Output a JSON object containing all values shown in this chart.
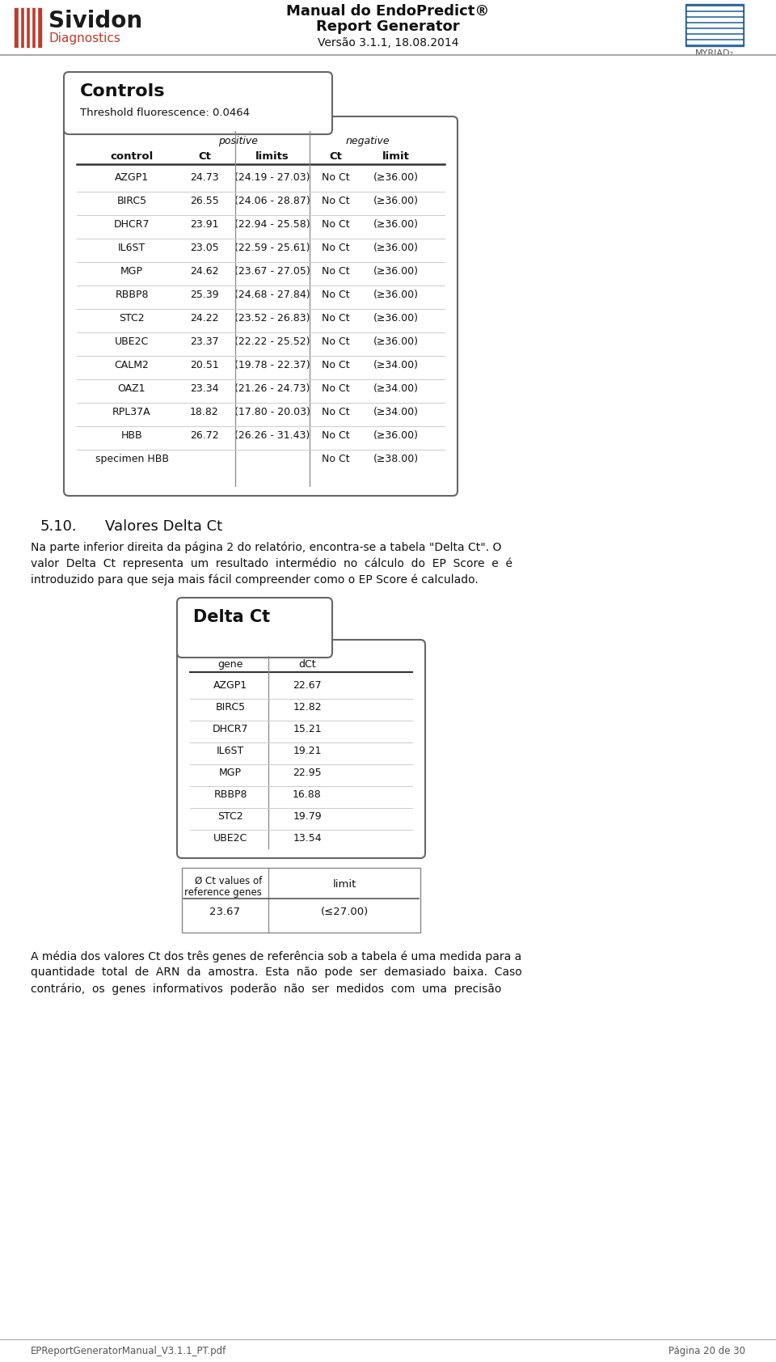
{
  "header_title1": "Manual do EndoPredict®",
  "header_title2": "Report Generator",
  "header_subtitle": "Versão 3.1.1, 18.08.2014",
  "sividon_text": "Sividon",
  "diagnostics_text": "Diagnostics",
  "section_title": "Controls",
  "threshold_text": "Threshold fluorescence: 0.0464",
  "controls_pos_header": "positive",
  "controls_neg_header": "negative",
  "controls_data": [
    [
      "AZGP1",
      "24.73",
      "(24.19 - 27.03)",
      "No Ct",
      "(≥36.00)"
    ],
    [
      "BIRC5",
      "26.55",
      "(24.06 - 28.87)",
      "No Ct",
      "(≥36.00)"
    ],
    [
      "DHCR7",
      "23.91",
      "(22.94 - 25.58)",
      "No Ct",
      "(≥36.00)"
    ],
    [
      "IL6ST",
      "23.05",
      "(22.59 - 25.61)",
      "No Ct",
      "(≥36.00)"
    ],
    [
      "MGP",
      "24.62",
      "(23.67 - 27.05)",
      "No Ct",
      "(≥36.00)"
    ],
    [
      "RBBP8",
      "25.39",
      "(24.68 - 27.84)",
      "No Ct",
      "(≥36.00)"
    ],
    [
      "STC2",
      "24.22",
      "(23.52 - 26.83)",
      "No Ct",
      "(≥36.00)"
    ],
    [
      "UBE2C",
      "23.37",
      "(22.22 - 25.52)",
      "No Ct",
      "(≥36.00)"
    ],
    [
      "CALM2",
      "20.51",
      "(19.78 - 22.37)",
      "No Ct",
      "(≥34.00)"
    ],
    [
      "OAZ1",
      "23.34",
      "(21.26 - 24.73)",
      "No Ct",
      "(≥34.00)"
    ],
    [
      "RPL37A",
      "18.82",
      "(17.80 - 20.03)",
      "No Ct",
      "(≥34.00)"
    ],
    [
      "HBB",
      "26.72",
      "(26.26 - 31.43)",
      "No Ct",
      "(≥36.00)"
    ],
    [
      "specimen HBB",
      "",
      "",
      "No Ct",
      "(≥38.00)"
    ]
  ],
  "section510": "5.10.",
  "section510_title": "Valores Delta Ct",
  "para1_lines": [
    "Na parte inferior direita da página 2 do relatório, encontra-se a tabela \"Delta Ct\". O",
    "valor  Delta  Ct  representa  um  resultado  intermédio  no  cálculo  do  EP  Score  e  é",
    "introduzido para que seja mais fácil compreender como o EP Score é calculado."
  ],
  "delta_ct_title": "Delta Ct",
  "delta_data": [
    [
      "AZGP1",
      "22.67"
    ],
    [
      "BIRC5",
      "12.82"
    ],
    [
      "DHCR7",
      "15.21"
    ],
    [
      "IL6ST",
      "19.21"
    ],
    [
      "MGP",
      "22.95"
    ],
    [
      "RBBP8",
      "16.88"
    ],
    [
      "STC2",
      "19.79"
    ],
    [
      "UBE2C",
      "13.54"
    ]
  ],
  "ref_label1": "Ø Ct values of",
  "ref_label2": "reference genes",
  "ref_limit_hdr": "limit",
  "ref_value": "23.67",
  "ref_limit": "(≤27.00)",
  "para2_lines": [
    "A média dos valores Ct dos três genes de referência sob a tabela é uma medida para a",
    "quantidade  total  de  ARN  da  amostra.  Esta  não  pode  ser  demasiado  baixa.  Caso",
    "contrário,  os  genes  informativos  poderão  não  ser  medidos  com  uma  precisão"
  ],
  "footer_left": "EPReportGeneratorManual_V3.1.1_PT.pdf",
  "footer_right": "Página 20 de 30",
  "bg_color": "#ffffff",
  "border_color": "#555555",
  "sividon_red": "#c0392b",
  "myriad_blue": "#2a6496"
}
